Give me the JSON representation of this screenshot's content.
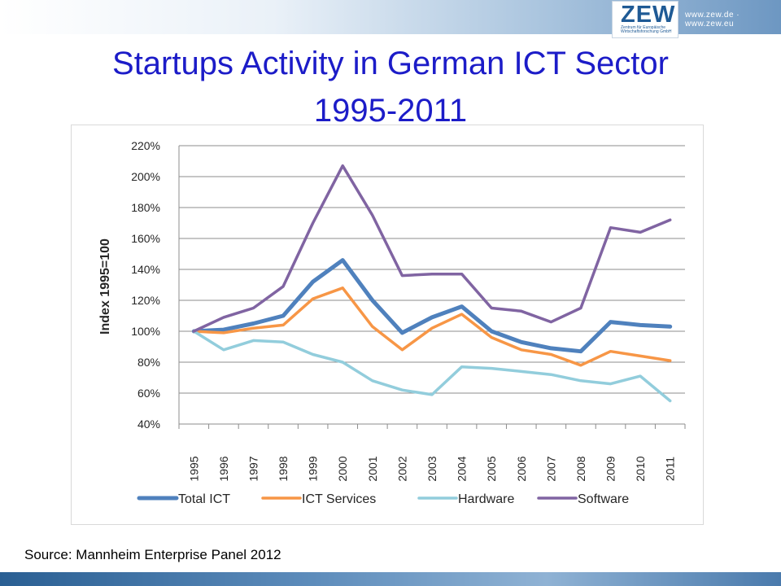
{
  "header": {
    "logo": "ZEW",
    "logo_subtitle": "Zentrum für Europäische Wirtschaftsforschung GmbH",
    "url": "www.zew.de · www.zew.eu"
  },
  "title_line1": "Startups Activity in German ICT Sector",
  "title_line2": "1995-2011",
  "source": "Source: Mannheim Enterprise Panel 2012",
  "chart_data": {
    "type": "line",
    "title": "",
    "xlabel": "",
    "ylabel": "Index 1995=100",
    "categories": [
      "1995",
      "1996",
      "1997",
      "1998",
      "1999",
      "2000",
      "2001",
      "2002",
      "2003",
      "2004",
      "2005",
      "2006",
      "2007",
      "2008",
      "2009",
      "2010",
      "2011"
    ],
    "ylim": [
      40,
      220
    ],
    "yticks": [
      40,
      60,
      80,
      100,
      120,
      140,
      160,
      180,
      200,
      220
    ],
    "ytick_labels": [
      "40%",
      "60%",
      "80%",
      "100%",
      "120%",
      "140%",
      "160%",
      "180%",
      "200%",
      "220%"
    ],
    "grid": true,
    "legend_position": "bottom",
    "series": [
      {
        "name": "Total ICT",
        "color": "#4f81bd",
        "values": [
          100,
          101,
          105,
          110,
          132,
          146,
          120,
          99,
          109,
          116,
          100,
          93,
          89,
          87,
          106,
          104,
          103
        ]
      },
      {
        "name": "ICT Services",
        "color": "#f79646",
        "values": [
          100,
          99,
          102,
          104,
          121,
          128,
          103,
          88,
          102,
          111,
          96,
          88,
          85,
          78,
          87,
          84,
          81
        ]
      },
      {
        "name": "Hardware",
        "color": "#92cddc",
        "values": [
          100,
          88,
          94,
          93,
          85,
          80,
          68,
          62,
          59,
          77,
          76,
          74,
          72,
          68,
          66,
          71,
          55
        ]
      },
      {
        "name": "Software",
        "color": "#8064a2",
        "values": [
          100,
          109,
          115,
          129,
          170,
          207,
          175,
          136,
          137,
          137,
          115,
          113,
          106,
          115,
          167,
          164,
          172
        ]
      }
    ]
  }
}
